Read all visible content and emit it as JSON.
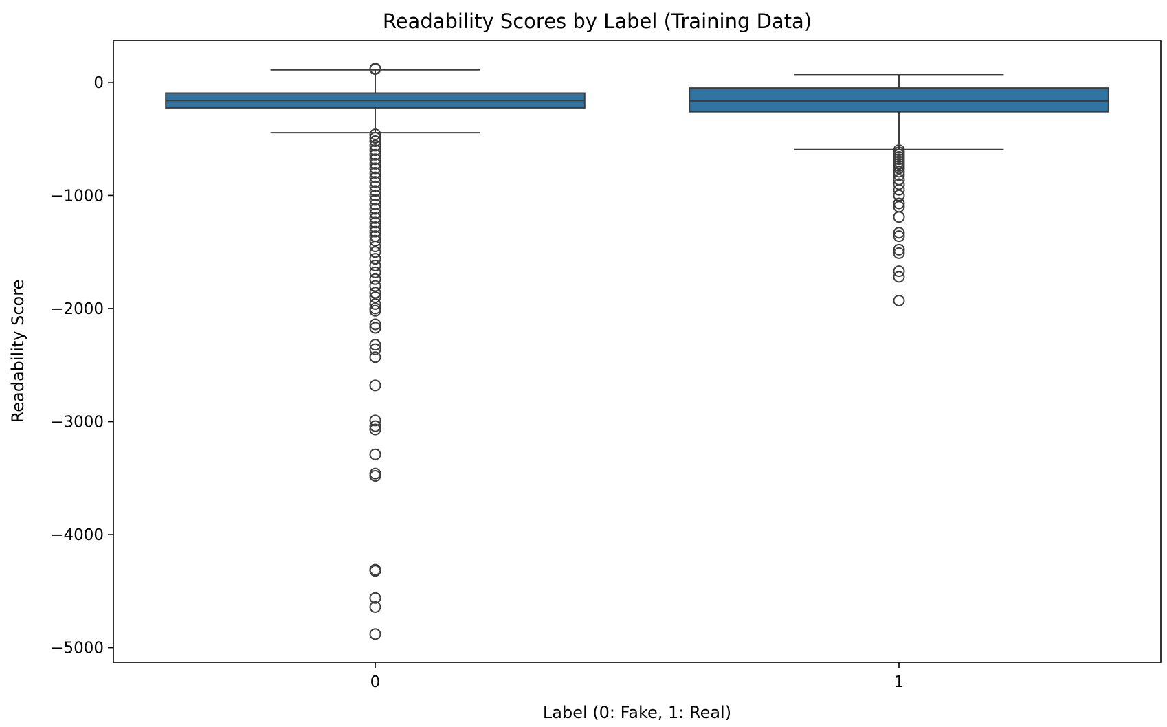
{
  "chart_data": {
    "type": "box",
    "title": "Readability Scores by Label (Training Data)",
    "xlabel": "Label (0: Fake, 1: Real)",
    "ylabel": "Readability Score",
    "ylim": [
      -5130,
      370
    ],
    "yticks": [
      0,
      -1000,
      -2000,
      -3000,
      -4000,
      -5000
    ],
    "ytick_labels": [
      "0",
      "−1000",
      "−2000",
      "−3000",
      "−4000",
      "−5000"
    ],
    "categories": [
      "0",
      "1"
    ],
    "grid": false,
    "box_color": "#3274a1",
    "line_color": "#3d3d3d",
    "boxes": [
      {
        "category": "0",
        "q1": -225,
        "median": -160,
        "q3": -95,
        "whisker_low": -445,
        "whisker_high": 110,
        "outliers": [
          118,
          122,
          -460,
          -490,
          -520,
          -560,
          -600,
          -640,
          -680,
          -720,
          -760,
          -800,
          -840,
          -880,
          -920,
          -960,
          -1000,
          -1040,
          -1080,
          -1120,
          -1160,
          -1200,
          -1240,
          -1280,
          -1320,
          -1360,
          -1400,
          -1450,
          -1500,
          -1560,
          -1620,
          -1680,
          -1740,
          -1800,
          -1860,
          -1900,
          -1960,
          -2000,
          -2020,
          -2140,
          -2170,
          -2320,
          -2360,
          -2430,
          -2680,
          -2990,
          -3040,
          -3070,
          -3290,
          -3460,
          -3480,
          -4310,
          -4320,
          -4560,
          -4640,
          -4880
        ]
      },
      {
        "category": "1",
        "q1": -260,
        "median": -165,
        "q3": -50,
        "whisker_low": -595,
        "whisker_high": 70,
        "outliers": [
          -600,
          -620,
          -640,
          -660,
          -680,
          -700,
          -720,
          -740,
          -760,
          -790,
          -820,
          -860,
          -900,
          -950,
          -1000,
          -1070,
          -1100,
          -1190,
          -1330,
          -1360,
          -1480,
          -1510,
          -1670,
          -1720,
          -1930
        ]
      }
    ]
  }
}
